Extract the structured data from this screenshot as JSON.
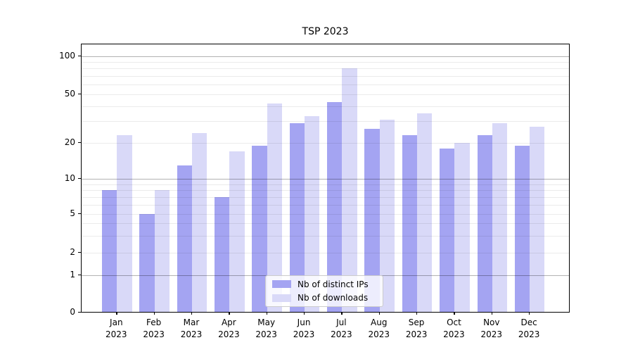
{
  "figure": {
    "background": "#ffffff",
    "spine_color": "#000000"
  },
  "chart_data": {
    "type": "bar",
    "title": "TSP 2023",
    "categories": [
      "Jan",
      "Feb",
      "Mar",
      "Apr",
      "May",
      "Jun",
      "Jul",
      "Aug",
      "Sep",
      "Oct",
      "Nov",
      "Dec"
    ],
    "x_year_label": "2023",
    "series": [
      {
        "name": "Nb of distinct IPs",
        "color": "#a4a4f2",
        "values": [
          8,
          5,
          13,
          7,
          19,
          29,
          43,
          26,
          23,
          18,
          23,
          19
        ]
      },
      {
        "name": "Nb of downloads",
        "color": "#d9d9f8",
        "values": [
          23,
          8,
          24,
          17,
          42,
          33,
          80,
          31,
          35,
          20,
          29,
          27
        ]
      }
    ],
    "xlabel": "",
    "ylabel": "",
    "y_scale": "symlog-like (linear 0-1, log above)",
    "ylim": [
      0,
      140
    ],
    "y_ticks": [
      0,
      1,
      2,
      5,
      10,
      20,
      50,
      100
    ],
    "y_scale_anchors": [
      [
        0,
        381
      ],
      [
        1,
        328
      ],
      [
        2,
        296
      ],
      [
        5,
        241
      ],
      [
        10,
        191
      ],
      [
        20,
        140
      ],
      [
        50,
        71
      ],
      [
        100,
        17
      ]
    ],
    "grid": {
      "on": true,
      "drawn_above_bars": true,
      "dark_line_values": [
        1,
        10,
        100
      ],
      "light_line_values": [
        2,
        3,
        4,
        5,
        6,
        7,
        8,
        9,
        20,
        30,
        40,
        50,
        60,
        70,
        80,
        90
      ],
      "dark_color": "rgba(0,0,0,0.30)",
      "light_color": "rgba(0,0,0,0.08)"
    },
    "legend": {
      "position": "bottom-center",
      "background": "rgba(255,255,255,0.8)",
      "border_color": "#cccccc"
    }
  }
}
